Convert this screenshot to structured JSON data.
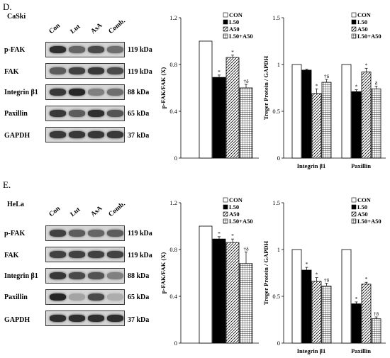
{
  "panels": [
    {
      "letter": "D.",
      "cell_line": "CaSki",
      "lanes": [
        "Con",
        "Lut",
        "AsA",
        "Comb."
      ],
      "blots": [
        {
          "name": "p-FAK",
          "kda": "119 kDa",
          "intensity": [
            0.85,
            0.55,
            0.7,
            0.5
          ]
        },
        {
          "name": "FAK",
          "kda": "119 kDa",
          "intensity": [
            0.6,
            0.75,
            0.8,
            0.7
          ]
        },
        {
          "name": "Integrin β1",
          "kda": "88 kDa",
          "intensity": [
            0.8,
            0.9,
            0.4,
            0.5
          ]
        },
        {
          "name": "Paxillin",
          "kda": "65 kDa",
          "intensity": [
            0.8,
            0.6,
            0.85,
            0.65
          ]
        },
        {
          "name": "GAPDH",
          "kda": "37 kDa",
          "intensity": [
            0.8,
            0.8,
            0.8,
            0.8
          ]
        }
      ],
      "chart_left": {
        "type": "bar",
        "ylabel": "p-FAK/FAK  (X)",
        "ylim": [
          0,
          1.2
        ],
        "yticks": [
          "0",
          "0.4",
          "0.8",
          "1.2"
        ],
        "legend": [
          "CON",
          "L50",
          "A50",
          "L50+A50"
        ],
        "values": [
          1.0,
          0.69,
          0.86,
          0.6
        ],
        "errors": [
          0,
          0.02,
          0.02,
          0.03
        ],
        "annotations": [
          "",
          "*",
          "*",
          "†δ"
        ]
      },
      "chart_right": {
        "type": "bar",
        "ylabel": "Treger Protein / GAPDH",
        "ylim": [
          0,
          1.5
        ],
        "yticks": [
          "0",
          "0.5",
          "1",
          "1.5"
        ],
        "legend": [
          "CON",
          "L50",
          "A50",
          "L50+A50"
        ],
        "categories": [
          "Integrin  β1",
          "Paxillin"
        ],
        "series": [
          {
            "name": "CON",
            "values": [
              1.0,
              1.0
            ],
            "errors": [
              0,
              0
            ],
            "annotations": [
              "",
              ""
            ]
          },
          {
            "name": "L50",
            "values": [
              0.94,
              0.71
            ],
            "errors": [
              0.01,
              0.02
            ],
            "annotations": [
              "",
              "*"
            ]
          },
          {
            "name": "A50",
            "values": [
              0.69,
              0.92
            ],
            "errors": [
              0.05,
              0.04
            ],
            "annotations": [
              "*",
              "*"
            ]
          },
          {
            "name": "L50+A50",
            "values": [
              0.81,
              0.74
            ],
            "errors": [
              0.03,
              0.03
            ],
            "annotations": [
              "†δ",
              "δ"
            ]
          }
        ]
      }
    },
    {
      "letter": "E.",
      "cell_line": "HeLa",
      "lanes": [
        "Con",
        "Lut",
        "AsA",
        "Comb."
      ],
      "blots": [
        {
          "name": "p-FAK",
          "kda": "119 kDa",
          "intensity": [
            0.75,
            0.6,
            0.55,
            0.6
          ]
        },
        {
          "name": "FAK",
          "kda": "119 kDa",
          "intensity": [
            0.75,
            0.75,
            0.75,
            0.75
          ]
        },
        {
          "name": "Integrin β1",
          "kda": "88 kDa",
          "intensity": [
            0.8,
            0.7,
            0.65,
            0.4
          ]
        },
        {
          "name": "Paxillin",
          "kda": "65 kDa",
          "intensity": [
            0.9,
            0.2,
            0.7,
            0.15
          ]
        },
        {
          "name": "GAPDH",
          "kda": "37 kDa",
          "intensity": [
            0.85,
            0.85,
            0.85,
            0.85
          ]
        }
      ],
      "chart_left": {
        "type": "bar",
        "ylabel": "p-FAK/FAK  (X)",
        "ylim": [
          0,
          1.2
        ],
        "yticks": [
          "0",
          "0.4",
          "0.8",
          "1.2"
        ],
        "legend": [
          "CON",
          "L50",
          "A50",
          "L50+A50"
        ],
        "values": [
          1.0,
          0.89,
          0.86,
          0.68
        ],
        "errors": [
          0,
          0.02,
          0.03,
          0.1
        ],
        "annotations": [
          "",
          "*",
          "*",
          "†δ"
        ]
      },
      "chart_right": {
        "type": "bar",
        "ylabel": "Treger Protein / GAPDH",
        "ylim": [
          0,
          1.5
        ],
        "yticks": [
          "0",
          "0.5",
          "1",
          "1.5"
        ],
        "legend": [
          "CON",
          "L50",
          "A50",
          "L50+A50"
        ],
        "categories": [
          "Integrin  β1",
          "Paxillin"
        ],
        "series": [
          {
            "name": "CON",
            "values": [
              1.0,
              1.0
            ],
            "errors": [
              0,
              0
            ],
            "annotations": [
              "",
              ""
            ]
          },
          {
            "name": "L50",
            "values": [
              0.78,
              0.42
            ],
            "errors": [
              0.03,
              0.02
            ],
            "annotations": [
              "*",
              "*"
            ]
          },
          {
            "name": "A50",
            "values": [
              0.66,
              0.63
            ],
            "errors": [
              0.04,
              0.02
            ],
            "annotations": [
              "*",
              "*"
            ]
          },
          {
            "name": "L50+A50",
            "values": [
              0.61,
              0.26
            ],
            "errors": [
              0.03,
              0.02
            ],
            "annotations": [
              "†δ",
              "†δ"
            ]
          }
        ]
      }
    }
  ]
}
